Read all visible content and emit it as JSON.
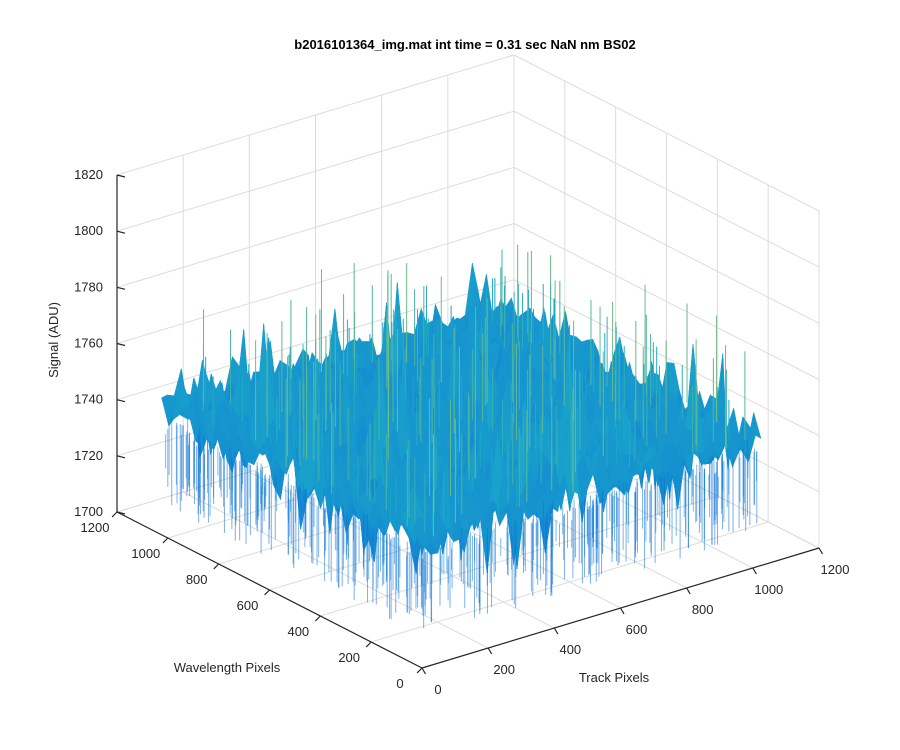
{
  "chart_data": {
    "type": "surface",
    "title": "b2016101364_img.mat int time = 0.31 sec  NaN nm BS02",
    "xlabel": "Track Pixels",
    "ylabel": "Wavelength Pixels",
    "zlabel": "Signal (ADU)",
    "xlim": [
      0,
      1200
    ],
    "ylim": [
      0,
      1200
    ],
    "zlim": [
      1700,
      1820
    ],
    "x_ticks": [
      "0",
      "200",
      "400",
      "600",
      "800",
      "1000",
      "1200"
    ],
    "y_ticks": [
      "0",
      "200",
      "400",
      "600",
      "800",
      "1000",
      "1200"
    ],
    "z_ticks": [
      "1700",
      "1720",
      "1740",
      "1760",
      "1780",
      "1800",
      "1820"
    ],
    "grid": true,
    "colormap": "parula",
    "surface": {
      "x_extent": [
        0,
        1024
      ],
      "y_extent": [
        0,
        1024
      ],
      "mean_signal": 1745,
      "noise_range": [
        1715,
        1805
      ]
    },
    "colors": {
      "low": "#0f6fd8",
      "mid": "#1aa9c9",
      "high": "#c9cf3c"
    }
  }
}
